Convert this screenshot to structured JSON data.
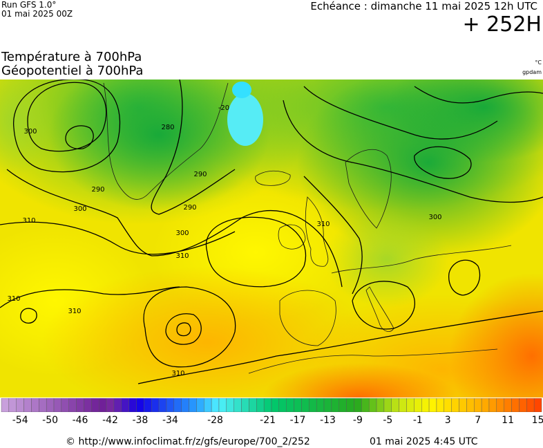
{
  "header": {
    "run_name": "Run GFS 1.0°",
    "run_date": "01 mai 2025 00Z",
    "forecast_time": "Echéance : dimanche 11 mai 2025 12h UTC",
    "forecast_hour": "+ 252H"
  },
  "titles": {
    "temperature": "Température à 700hPa",
    "geopotential": "Géopotentiel à 700hPa",
    "unit_temperature": "°C",
    "unit_geopotential": "gpdam"
  },
  "contour_labels": [
    "300",
    "290",
    "290",
    "280",
    "290",
    "300",
    "310",
    "300",
    "310",
    "310",
    "310",
    "310",
    "310",
    "300",
    "-20"
  ],
  "colorbar": {
    "min": -56,
    "max": 16,
    "tick_labels": [
      "-54",
      "-50",
      "-46",
      "-42",
      "-38",
      "-34",
      "-28",
      "-21",
      "-17",
      "-13",
      "-9",
      "-5",
      "-1",
      "3",
      "7",
      "11",
      "15"
    ]
  },
  "footer": {
    "url": "© http://www.infoclimat.fr/z/gfs/europe/700_2/252",
    "generated": "01 mai 2025  4:45 UTC"
  }
}
